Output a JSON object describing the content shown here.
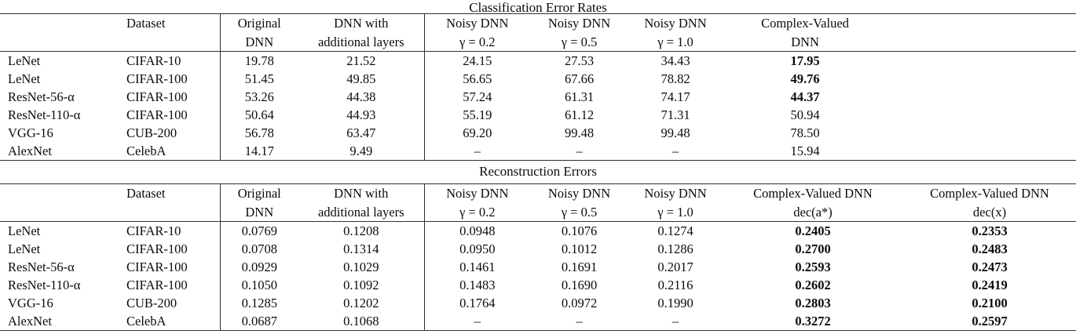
{
  "page": {
    "background": "#ffffff",
    "text_color": "#0c0c0c",
    "rule_color": "#2f2f2f"
  },
  "tables": [
    {
      "title": "Classification Error Rates",
      "header_row1": [
        "",
        "Dataset",
        "Original",
        "DNN with",
        "Noisy DNN",
        "Noisy DNN",
        "Noisy DNN",
        "Complex-Valued",
        ""
      ],
      "header_row2": [
        "",
        "",
        "DNN",
        "additional layers",
        "γ = 0.2",
        "γ = 0.5",
        "γ = 1.0",
        "DNN",
        ""
      ],
      "rows": [
        [
          "LeNet",
          "CIFAR-10",
          "19.78",
          "21.52",
          "24.15",
          "27.53",
          "34.43",
          "17.95",
          ""
        ],
        [
          "LeNet",
          "CIFAR-100",
          "51.45",
          "49.85",
          "56.65",
          "67.66",
          "78.82",
          "49.76",
          ""
        ],
        [
          "ResNet-56-α",
          "CIFAR-100",
          "53.26",
          "44.38",
          "57.24",
          "61.31",
          "74.17",
          "44.37",
          ""
        ],
        [
          "ResNet-110-α",
          "CIFAR-100",
          "50.64",
          "44.93",
          "55.19",
          "61.12",
          "71.31",
          "50.94",
          ""
        ],
        [
          "VGG-16",
          "CUB-200",
          "56.78",
          "63.47",
          "69.20",
          "99.48",
          "99.48",
          "78.50",
          ""
        ],
        [
          "AlexNet",
          "CelebA",
          "14.17",
          "9.49",
          "–",
          "–",
          "–",
          "15.94",
          ""
        ]
      ],
      "bold_cells": [
        [
          0,
          7
        ],
        [
          1,
          7
        ],
        [
          2,
          7
        ]
      ]
    },
    {
      "title": "Reconstruction Errors",
      "header_row1": [
        "",
        "Dataset",
        "Original",
        "DNN with",
        "Noisy DNN",
        "Noisy DNN",
        "Noisy DNN",
        "Complex-Valued DNN",
        "Complex-Valued DNN"
      ],
      "header_row2": [
        "",
        "",
        "DNN",
        "additional layers",
        "γ = 0.2",
        "γ = 0.5",
        "γ = 1.0",
        "dec(a*)",
        "dec(x)"
      ],
      "rows": [
        [
          "LeNet",
          "CIFAR-10",
          "0.0769",
          "0.1208",
          "0.0948",
          "0.1076",
          "0.1274",
          "0.2405",
          "0.2353"
        ],
        [
          "LeNet",
          "CIFAR-100",
          "0.0708",
          "0.1314",
          "0.0950",
          "0.1012",
          "0.1286",
          "0.2700",
          "0.2483"
        ],
        [
          "ResNet-56-α",
          "CIFAR-100",
          "0.0929",
          "0.1029",
          "0.1461",
          "0.1691",
          "0.2017",
          "0.2593",
          "0.2473"
        ],
        [
          "ResNet-110-α",
          "CIFAR-100",
          "0.1050",
          "0.1092",
          "0.1483",
          "0.1690",
          "0.2116",
          "0.2602",
          "0.2419"
        ],
        [
          "VGG-16",
          "CUB-200",
          "0.1285",
          "0.1202",
          "0.1764",
          "0.0972",
          "0.1990",
          "0.2803",
          "0.2100"
        ],
        [
          "AlexNet",
          "CelebA",
          "0.0687",
          "0.1068",
          "–",
          "–",
          "–",
          "0.3272",
          "0.2597"
        ]
      ],
      "bold_columns": [
        7,
        8
      ]
    }
  ]
}
